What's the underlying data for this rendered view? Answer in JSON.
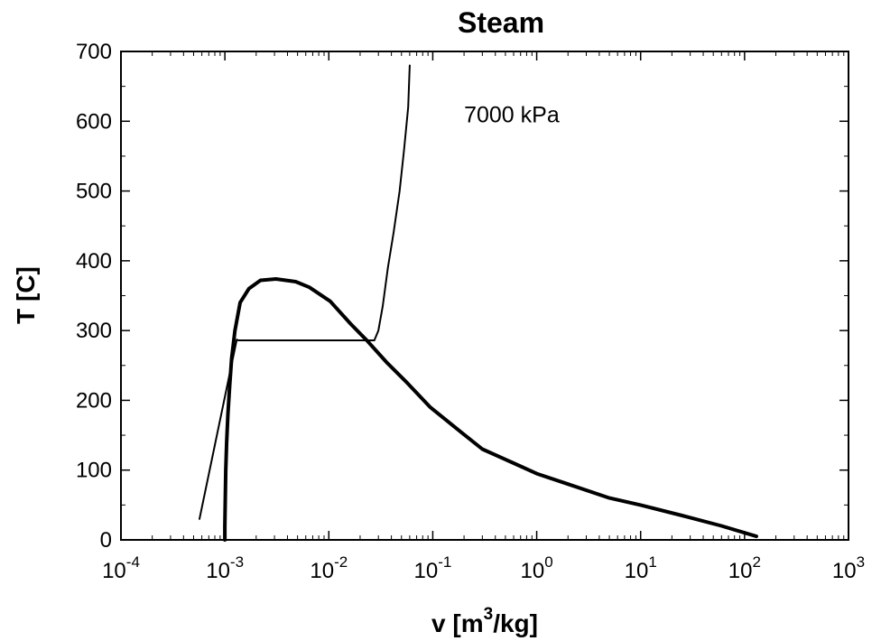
{
  "chart_data": {
    "type": "line",
    "title": "Steam",
    "xlabel": "v [m3/kg]",
    "xlabel_parts": {
      "prefix": "v [m",
      "superscript": "3",
      "suffix": "/kg]"
    },
    "ylabel": "T [C]",
    "x_scale": "log",
    "xlim": [
      0.0001,
      1000
    ],
    "ylim": [
      0,
      700
    ],
    "grid": false,
    "x_ticks": [
      {
        "value": 0.0001,
        "base": "10",
        "exp": "-4"
      },
      {
        "value": 0.001,
        "base": "10",
        "exp": "-3"
      },
      {
        "value": 0.01,
        "base": "10",
        "exp": "-2"
      },
      {
        "value": 0.1,
        "base": "10",
        "exp": "-1"
      },
      {
        "value": 1,
        "base": "10",
        "exp": "0"
      },
      {
        "value": 10,
        "base": "10",
        "exp": "1"
      },
      {
        "value": 100,
        "base": "10",
        "exp": "2"
      },
      {
        "value": 1000,
        "base": "10",
        "exp": "3"
      }
    ],
    "y_ticks": [
      {
        "value": 0,
        "label": "0"
      },
      {
        "value": 100,
        "label": "100"
      },
      {
        "value": 200,
        "label": "200"
      },
      {
        "value": 300,
        "label": "300"
      },
      {
        "value": 400,
        "label": "400"
      },
      {
        "value": 500,
        "label": "500"
      },
      {
        "value": 600,
        "label": "600"
      },
      {
        "value": 700,
        "label": "700"
      }
    ],
    "annotation": {
      "text": "7000 kPa",
      "x": 0.2,
      "y": 610
    },
    "series": [
      {
        "role": "saturation-dome",
        "stroke_width": 4,
        "x": [
          0.001,
          0.001,
          0.00101,
          0.00102,
          0.00104,
          0.00107,
          0.00111,
          0.00116,
          0.00125,
          0.0014,
          0.0017,
          0.0022,
          0.0031,
          0.0048,
          0.0065,
          0.0103,
          0.0161,
          0.0235,
          0.0357,
          0.0568,
          0.0949,
          0.168,
          0.3,
          0.6,
          1.0,
          2.0,
          5.0,
          10.0,
          25.0,
          60.0,
          130.0
        ],
        "y": [
          0,
          20,
          60,
          100,
          140,
          180,
          220,
          260,
          300,
          340,
          360,
          372,
          374,
          370,
          362,
          342,
          310,
          285,
          255,
          225,
          190,
          160,
          130,
          110,
          95,
          80,
          60,
          50,
          35,
          20,
          5
        ]
      },
      {
        "role": "isobar",
        "name": "7000 kPa",
        "stroke_width": 2,
        "x": [
          0.00057,
          0.0013,
          0.00135,
          0.0274,
          0.03,
          0.033,
          0.037,
          0.042,
          0.048,
          0.053,
          0.058,
          0.06
        ],
        "y": [
          30,
          287,
          286,
          286,
          300,
          335,
          390,
          440,
          500,
          560,
          620,
          680
        ]
      }
    ]
  }
}
